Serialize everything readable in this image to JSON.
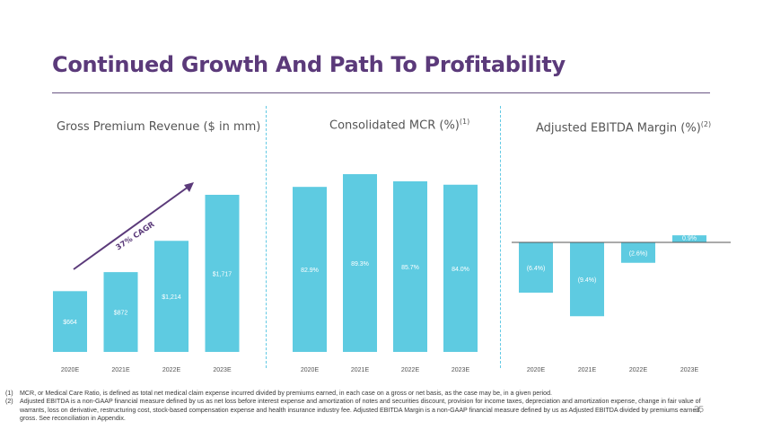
{
  "title": "Continued Growth And Path To Profitability",
  "bar_color": "#5ecbe1",
  "title_color": "#5b3a7a",
  "cagr_label": "37% CAGR",
  "chart_data": [
    {
      "type": "bar",
      "title": "Gross Premium Revenue ($ in mm)",
      "title_sup": "",
      "categories": [
        "2020E",
        "2021E",
        "2022E",
        "2023E"
      ],
      "values": [
        664,
        872,
        1214,
        1717
      ],
      "labels": [
        "$664",
        "$872",
        "$1,214",
        "$1,717"
      ]
    },
    {
      "type": "bar",
      "title": "Consolidated MCR (%)",
      "title_sup": "(1)",
      "categories": [
        "2020E",
        "2021E",
        "2022E",
        "2023E"
      ],
      "values": [
        82.9,
        89.3,
        85.7,
        84.0
      ],
      "labels": [
        "82.9%",
        "89.3%",
        "85.7%",
        "84.0%"
      ]
    },
    {
      "type": "bar",
      "title": "Adjusted EBITDA Margin (%)",
      "title_sup": "(2)",
      "categories": [
        "2020E",
        "2021E",
        "2022E",
        "2023E"
      ],
      "values": [
        -6.4,
        -9.4,
        -2.6,
        0.9
      ],
      "labels": [
        "(6.4%)",
        "(9.4%)",
        "(2.6%)",
        "0.9%"
      ]
    }
  ],
  "footnotes": [
    {
      "num": "(1)",
      "text": "MCR, or Medical Care Ratio, is defined as total net medical claim expense incurred divided by premiums earned, in each case on a gross or net basis, as the case may be, in a given period."
    },
    {
      "num": "(2)",
      "text": "Adjusted EBITDA is a non-GAAP financial measure defined by us as net loss before interest expense and amortization of notes and securities discount, provision for income taxes, depreciation and amortization expense, change in fair value of warrants, loss on derivative, restructuring cost, stock-based compensation expense and health insurance industry fee. Adjusted EBITDA Margin is a non-GAAP financial measure defined by us as Adjusted EBITDA divided by premiums earned, gross. See reconciliation in Appendix."
    }
  ],
  "page_number": "35"
}
